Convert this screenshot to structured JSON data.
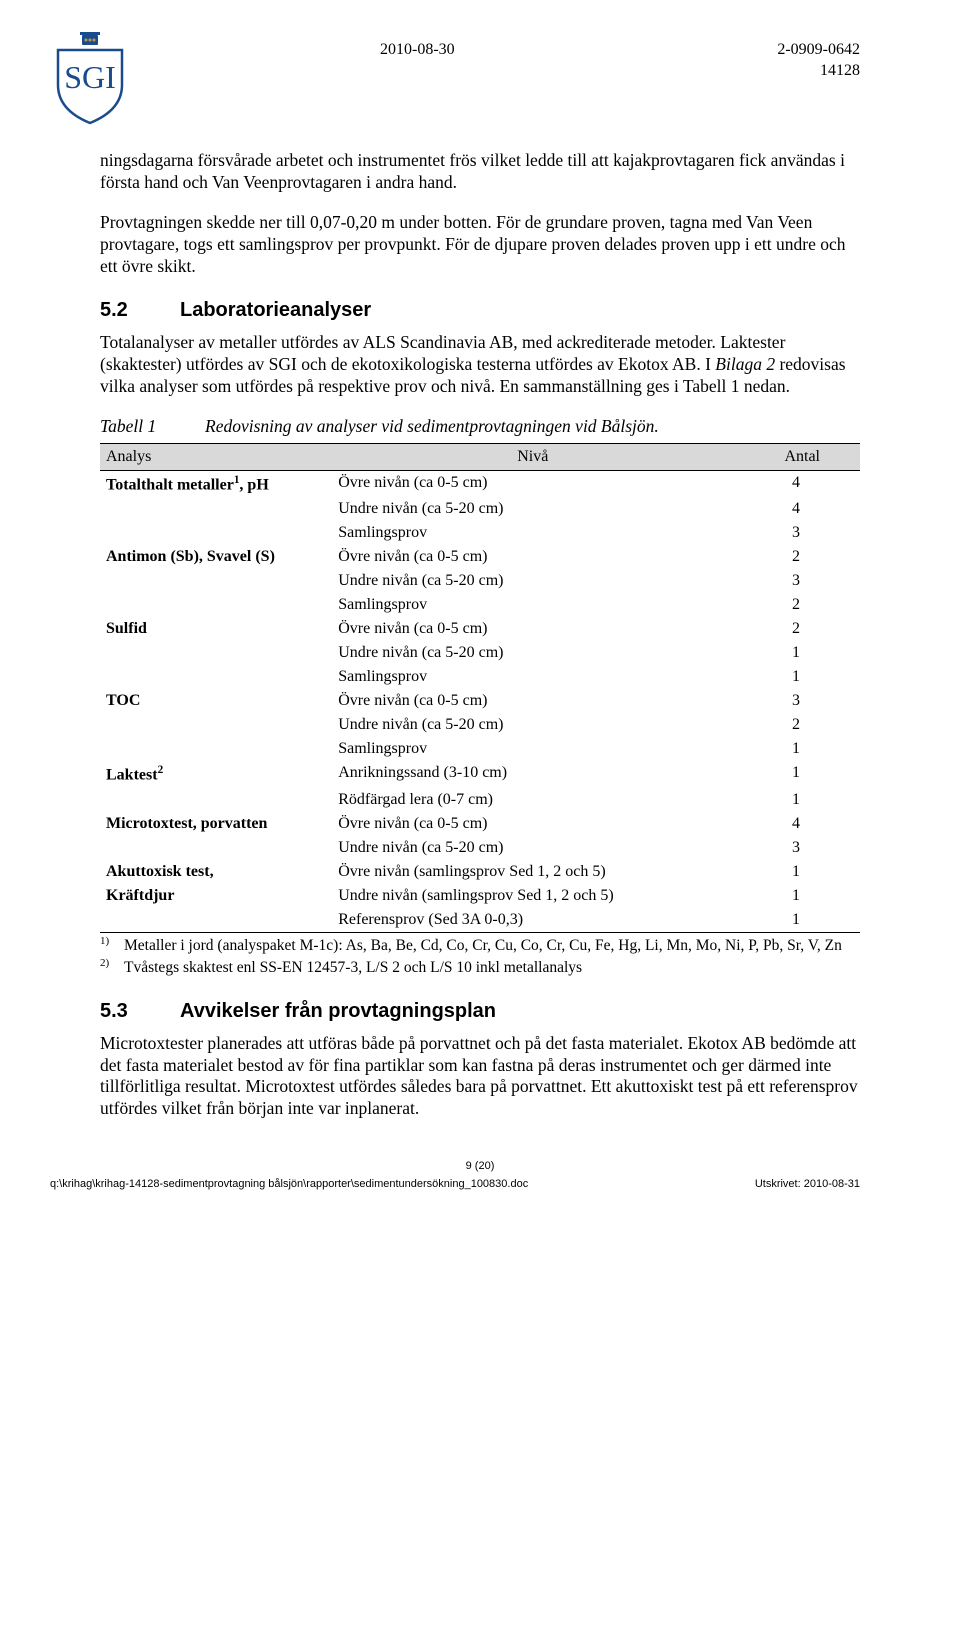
{
  "header": {
    "date": "2010-08-30",
    "docnum": "2-0909-0642",
    "ref": "14128"
  },
  "logo": {
    "text": "SGI",
    "crown_fill": "#1a4b8c",
    "shield_stroke": "#1a4b8c",
    "text_fill": "#1a4b8c"
  },
  "paragraphs": {
    "p1": "ningsdagarna försvårade arbetet och instrumentet frös vilket ledde till att kajakprovtagaren fick användas i första hand och Van Veenprovtagaren i andra hand.",
    "p2": "Provtagningen skedde ner till 0,07-0,20 m under botten. För de grundare proven, tagna med Van Veen provtagare, togs ett samlingsprov per provpunkt. För de djupare proven delades proven upp i ett undre och ett övre skikt.",
    "p3": "Totalanalyser av metaller utfördes av ALS Scandinavia AB, med ackrediterade metoder. Laktester (skaktester) utfördes av SGI och de ekotoxikologiska testerna utfördes av Ekotox AB. I ",
    "p3b": " redovisas vilka analyser som utfördes på respektive prov och nivå. En sammanställning ges i Tabell 1 nedan.",
    "bilaga": "Bilaga 2",
    "p4": "Microtoxtester planerades att utföras både på porvattnet och på det fasta materialet. Ekotox AB bedömde att det fasta materialet bestod av för fina partiklar som kan fastna på deras instrumentet och ger därmed inte tillförlitliga resultat. Microtoxtest utfördes således bara på porvattnet. Ett akuttoxiskt test på ett referensprov utfördes vilket från början inte var inplanerat."
  },
  "headings": {
    "h52num": "5.2",
    "h52": "Laboratorieanalyser",
    "h53num": "5.3",
    "h53": "Avvikelser från provtagningsplan"
  },
  "table": {
    "caption_label": "Tabell 1",
    "caption_text": "Redovisning av analyser vid sedimentprovtagningen vid Bålsjön.",
    "col1": "Analys",
    "col2": "Nivå",
    "col3": "Antal",
    "rows": [
      {
        "a": "Totalthalt metaller¹, pH",
        "n": "Övre nivån (ca 0-5 cm)",
        "c": "4"
      },
      {
        "a": "",
        "n": "Undre nivån (ca 5-20 cm)",
        "c": "4"
      },
      {
        "a": "",
        "n": "Samlingsprov",
        "c": "3"
      },
      {
        "a": "Antimon (Sb), Svavel (S)",
        "n": "Övre nivån (ca 0-5 cm)",
        "c": "2"
      },
      {
        "a": "",
        "n": "Undre nivån (ca 5-20 cm)",
        "c": "3"
      },
      {
        "a": "",
        "n": "Samlingsprov",
        "c": "2"
      },
      {
        "a": "Sulfid",
        "n": "Övre nivån (ca 0-5 cm)",
        "c": "2"
      },
      {
        "a": "",
        "n": "Undre nivån (ca 5-20 cm)",
        "c": "1"
      },
      {
        "a": "",
        "n": "Samlingsprov",
        "c": "1"
      },
      {
        "a": "TOC",
        "n": "Övre nivån (ca 0-5 cm)",
        "c": "3"
      },
      {
        "a": "",
        "n": "Undre nivån (ca 5-20 cm)",
        "c": "2"
      },
      {
        "a": "",
        "n": "Samlingsprov",
        "c": "1"
      },
      {
        "a": "Laktest²",
        "n": "Anrikningssand (3-10 cm)",
        "c": "1"
      },
      {
        "a": "",
        "n": "Rödfärgad lera (0-7 cm)",
        "c": "1"
      },
      {
        "a": "Microtoxtest, porvatten",
        "n": "Övre nivån (ca 0-5 cm)",
        "c": "4"
      },
      {
        "a": "",
        "n": "Undre nivån (ca 5-20 cm)",
        "c": "3"
      },
      {
        "a": "Akuttoxisk test,",
        "n": "Övre nivån (samlingsprov Sed 1, 2 och 5)",
        "c": "1"
      },
      {
        "a": "Kräftdjur",
        "n": "Undre nivån (samlingsprov Sed 1, 2 och 5)",
        "c": "1"
      },
      {
        "a": "",
        "n": "Referensprov (Sed 3A 0-0,3)",
        "c": "1"
      }
    ]
  },
  "footnotes": {
    "f1sup": "1)",
    "f1": "Metaller i jord (analyspaket M-1c): As, Ba, Be, Cd, Co, Cr, Cu, Co, Cr, Cu, Fe, Hg, Li, Mn, Mo, Ni, P, Pb, Sr, V, Zn",
    "f2sup": "2)",
    "f2": "Tvåstegs skaktest enl SS-EN 12457-3, L/S 2 och L/S 10 inkl metallanalys"
  },
  "footer": {
    "pagenum": "9 (20)",
    "path": "q:\\krihag\\krihag-14128-sedimentprovtagning bålsjön\\rapporter\\sedimentundersökning_100830.doc",
    "printed": "Utskrivet: 2010-08-31"
  }
}
